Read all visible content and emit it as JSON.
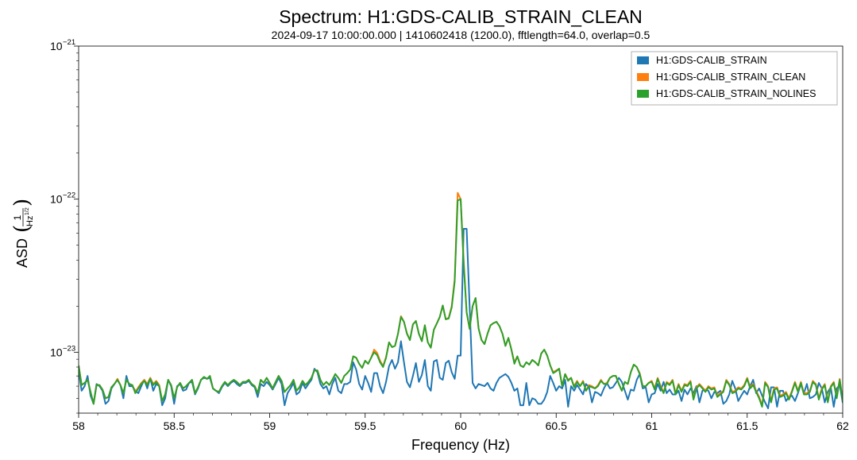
{
  "chart_data": {
    "type": "line",
    "title": "Spectrum: H1:GDS-CALIB_STRAIN_CLEAN",
    "subtitle": "2024-09-17 10:00:00.000 | 1410602418 (1200.0), fftlength=64.0, overlap=0.5",
    "xlabel": "Frequency (Hz)",
    "ylabel": {
      "prefix": "ASD",
      "numerator": "1",
      "denominator": "Hz",
      "exponent": "1/2"
    },
    "xlim": [
      58,
      62
    ],
    "ylim": [
      4e-24,
      1e-21
    ],
    "yscale": "log",
    "x_ticks": [
      58,
      58.5,
      59,
      59.5,
      60,
      60.5,
      61,
      61.5,
      62
    ],
    "x_tick_labels": [
      "58",
      "58.5",
      "59",
      "59.5",
      "60",
      "60.5",
      "61",
      "61.5",
      "62"
    ],
    "y_ticks": [
      {
        "value": 1e-23,
        "base": "10",
        "exp": "−23"
      },
      {
        "value": 1e-22,
        "base": "10",
        "exp": "−22"
      },
      {
        "value": 1e-21,
        "base": "10",
        "exp": "−21"
      }
    ],
    "grid": false,
    "legend_position": "top-right",
    "freq_start": 58,
    "freq_step": 0.015625,
    "series": [
      {
        "name": "H1:GDS-CALIB_STRAIN",
        "color": "#1f77b4",
        "values": [
          7.6,
          5.6,
          6.0,
          7.0,
          5.2,
          4.6,
          6.2,
          6.0,
          5.6,
          4.6,
          4.8,
          5.8,
          6.2,
          6.6,
          6.1,
          5.0,
          7.0,
          6.0,
          6.0,
          5.6,
          5.4,
          6.0,
          6.6,
          5.8,
          6.8,
          5.6,
          6.2,
          6.0,
          4.5,
          5.0,
          6.6,
          6.0,
          4.6,
          6.0,
          6.2,
          5.6,
          5.7,
          6.3,
          6.4,
          5.3,
          5.8,
          6.6,
          6.8,
          6.7,
          6.8,
          5.8,
          5.6,
          5.4,
          5.9,
          6.3,
          6.0,
          6.3,
          6.5,
          6.2,
          6.0,
          6.3,
          6.3,
          6.5,
          6.1,
          5.9,
          5.1,
          6.2,
          6.0,
          6.4,
          6.1,
          5.7,
          6.2,
          6.8,
          6.2,
          4.5,
          5.4,
          5.8,
          6.3,
          5.3,
          5.5,
          6.3,
          5.8,
          6.2,
          6.6,
          7.8,
          7.4,
          6.2,
          5.8,
          6.0,
          5.3,
          6.2,
          6.8,
          5.6,
          5.4,
          6.2,
          6.2,
          6.4,
          8.6,
          7.7,
          6.2,
          5.7,
          7.0,
          6.3,
          5.5,
          7.3,
          7.3,
          6.0,
          5.4,
          6.4,
          8.1,
          8.9,
          7.8,
          8.6,
          11.8,
          8.6,
          6.4,
          5.9,
          7.0,
          8.5,
          6.4,
          7.1,
          8.9,
          6.0,
          5.6,
          8.7,
          8.9,
          6.8,
          6.6,
          8.5,
          8.8,
          7.4,
          6.7,
          9.5,
          9.5,
          64,
          64,
          20,
          6.3,
          5.8,
          6.2,
          6.1,
          6.0,
          6.3,
          5.8,
          5.6,
          6.3,
          6.8,
          7.0,
          7.2,
          6.9,
          6.3,
          5.6,
          5.8,
          4.5,
          4.5,
          6.3,
          4.5,
          5.0,
          4.9,
          4.6,
          4.6,
          4.9,
          5.5,
          7.0,
          6.3,
          5.6,
          6.0,
          5.8,
          6.6,
          4.4,
          6.0,
          5.6,
          6.1,
          5.7,
          5.3,
          6.2,
          5.9,
          4.7,
          5.5,
          5.4,
          5.2,
          5.8,
          6.3,
          5.8,
          5.9,
          6.3,
          6.8,
          6.4,
          5.6,
          4.9,
          5.7,
          5.6,
          6.6,
          7.2,
          5.8,
          5.9,
          4.7,
          5.3,
          5.4,
          6.2,
          5.6,
          6.4,
          5.4,
          5.7,
          5.3,
          5.3,
          5.6,
          4.8,
          5.7,
          5.3,
          5.8,
          5.4,
          6.0,
          4.7,
          5.6,
          5.7,
          5.6,
          5.0,
          5.5,
          5.4,
          5.6,
          4.6,
          4.8,
          5.3,
          6.5,
          5.8,
          4.8,
          5.2,
          5.6,
          5.3,
          6.0,
          6.6,
          5.4,
          5.8,
          5.2,
          4.7,
          4.3,
          5.9,
          5.9,
          4.4,
          5.6,
          5.6,
          4.8,
          5.1,
          5.2,
          4.8,
          5.4,
          6.2,
          5.4,
          6.2,
          5.0,
          5.1,
          5.3,
          6.3,
          5.8,
          4.7,
          5.5,
          5.9,
          4.4,
          5.8,
          6.1,
          4.7,
          6.5,
          4.6,
          5.6,
          5.8,
          5.2,
          4.3,
          5.2,
          5.0,
          6.0,
          5.0,
          5.0,
          4.8,
          5.5,
          5.8,
          5.3,
          5.8,
          5.0,
          5.3,
          5.2,
          4.6,
          5.3,
          5.5,
          4.6,
          7.0
        ]
      },
      {
        "name": "H1:GDS-CALIB_STRAIN_CLEAN",
        "color": "#ff7f0e",
        "values": [
          8.2,
          6.1,
          6.3,
          6.6,
          5.5,
          4.6,
          6.1,
          6.1,
          5.7,
          5.0,
          5.1,
          5.9,
          6.2,
          6.7,
          6.1,
          5.4,
          6.6,
          6.2,
          6.1,
          5.5,
          5.9,
          6.3,
          6.6,
          6.2,
          6.8,
          6.2,
          6.5,
          6.1,
          4.8,
          5.3,
          6.6,
          6.1,
          5.0,
          5.9,
          6.3,
          5.8,
          6.0,
          6.3,
          6.6,
          5.4,
          5.9,
          6.6,
          6.9,
          6.7,
          7.0,
          5.8,
          5.6,
          5.5,
          6.0,
          6.4,
          6.1,
          6.4,
          6.6,
          6.4,
          6.1,
          6.4,
          6.4,
          6.6,
          6.2,
          6.0,
          5.4,
          6.6,
          6.3,
          6.8,
          6.3,
          5.8,
          6.4,
          7.0,
          6.5,
          5.5,
          5.8,
          6.1,
          6.6,
          5.6,
          5.9,
          6.5,
          6.1,
          6.4,
          6.8,
          7.6,
          7.6,
          6.6,
          6.1,
          6.4,
          6.1,
          6.6,
          7.2,
          6.8,
          6.3,
          7.0,
          7.3,
          7.7,
          9.4,
          9.2,
          8.4,
          7.9,
          8.8,
          8.4,
          9.2,
          10.4,
          9.9,
          8.8,
          8.1,
          9.3,
          11.6,
          10.8,
          11.0,
          13.2,
          17.2,
          15.8,
          13.3,
          12.0,
          15.2,
          16.0,
          13.2,
          11.8,
          15.0,
          11.6,
          10.7,
          14.0,
          15.4,
          17.0,
          20.2,
          16.4,
          16.8,
          20.0,
          30.0,
          110,
          100,
          40,
          18.2,
          14.2,
          20.0,
          22.6,
          14.3,
          12.0,
          11.3,
          13.2,
          15.0,
          15.5,
          15.8,
          14.8,
          13.2,
          11.0,
          12.4,
          10.4,
          8.6,
          9.4,
          8.2,
          8.0,
          8.6,
          8.3,
          8.9,
          8.6,
          8.2,
          9.8,
          10.4,
          9.5,
          8.2,
          7.4,
          7.6,
          7.8,
          6.0,
          7.2,
          6.6,
          6.8,
          6.0,
          6.5,
          6.0,
          6.5,
          5.6,
          6.1,
          6.0,
          5.8,
          6.1,
          6.6,
          6.2,
          6.3,
          6.8,
          7.0,
          7.0,
          6.2,
          5.6,
          6.4,
          6.2,
          7.4,
          8.3,
          8.0,
          7.3,
          6.0,
          6.0,
          6.3,
          6.5,
          5.8,
          6.8,
          6.0,
          5.5,
          6.4,
          6.2,
          6.6,
          5.4,
          6.2,
          5.6,
          6.2,
          6.1,
          6.5,
          5.0,
          5.9,
          6.2,
          5.9,
          5.6,
          6.0,
          5.8,
          5.9,
          5.2,
          5.4,
          5.6,
          6.6,
          6.2,
          5.5,
          5.6,
          5.9,
          5.8,
          6.1,
          6.8,
          5.9,
          6.2,
          5.6,
          5.1,
          4.5,
          6.4,
          6.0,
          4.8,
          5.8,
          5.9,
          5.2,
          5.3,
          5.5,
          5.0,
          5.6,
          6.4,
          5.6,
          6.4,
          5.4,
          5.4,
          5.6,
          6.5,
          6.2,
          5.0,
          5.8,
          6.2,
          4.8,
          6.0,
          6.4,
          5.1,
          6.7,
          4.9,
          5.7,
          6.1,
          5.5,
          4.6,
          5.5,
          5.4,
          6.1,
          5.4,
          5.3,
          5.0,
          5.8,
          6.2,
          5.6,
          6.1,
          5.4,
          5.6,
          5.5,
          4.8,
          5.6,
          5.8,
          4.9,
          7.0
        ]
      },
      {
        "name": "H1:GDS-CALIB_STRAIN_NOLINES",
        "color": "#2ca02c",
        "values": [
          8.2,
          6.1,
          6.3,
          6.6,
          5.5,
          4.6,
          6.1,
          6.1,
          5.7,
          5.0,
          5.1,
          5.9,
          6.2,
          6.6,
          6.1,
          5.4,
          6.6,
          6.2,
          6.1,
          5.4,
          5.8,
          6.2,
          6.5,
          6.1,
          6.7,
          6.1,
          6.4,
          6.0,
          4.8,
          5.3,
          6.6,
          6.1,
          5.0,
          5.9,
          6.3,
          5.8,
          6.0,
          6.3,
          6.6,
          5.4,
          5.9,
          6.6,
          6.9,
          6.7,
          7.0,
          5.8,
          5.6,
          5.5,
          6.0,
          6.4,
          6.1,
          6.4,
          6.6,
          6.4,
          6.1,
          6.4,
          6.4,
          6.6,
          6.2,
          6.0,
          5.4,
          6.6,
          6.3,
          6.8,
          6.3,
          5.8,
          6.4,
          7.0,
          6.5,
          5.5,
          5.8,
          6.1,
          6.6,
          5.6,
          5.9,
          6.5,
          6.1,
          6.4,
          6.8,
          7.6,
          7.6,
          6.6,
          6.1,
          6.4,
          6.1,
          6.6,
          7.2,
          6.8,
          6.3,
          7.0,
          7.3,
          7.7,
          9.4,
          9.2,
          8.4,
          7.9,
          8.8,
          8.4,
          9.2,
          10.0,
          9.6,
          8.6,
          8.0,
          9.2,
          11.6,
          10.8,
          11.0,
          13.2,
          17.0,
          15.8,
          13.2,
          12.0,
          15.2,
          16.0,
          13.2,
          11.8,
          15.0,
          11.6,
          10.7,
          14.0,
          15.4,
          17.0,
          20.2,
          16.4,
          16.6,
          19.6,
          29.0,
          98,
          100,
          38,
          18.2,
          14.2,
          20.0,
          22.6,
          14.3,
          12.0,
          11.3,
          13.2,
          15.0,
          15.5,
          15.8,
          14.8,
          13.2,
          11.0,
          12.4,
          10.4,
          8.4,
          9.4,
          8.2,
          8.0,
          8.6,
          8.3,
          8.9,
          8.6,
          8.2,
          9.8,
          10.4,
          9.5,
          8.2,
          7.3,
          7.5,
          7.8,
          6.0,
          7.2,
          6.5,
          6.8,
          5.9,
          6.4,
          6.0,
          6.4,
          5.6,
          6.0,
          5.9,
          5.8,
          6.0,
          6.5,
          6.2,
          6.2,
          6.8,
          7.0,
          7.0,
          6.2,
          5.6,
          6.4,
          6.2,
          7.4,
          8.3,
          8.0,
          7.2,
          6.0,
          6.0,
          6.3,
          6.4,
          5.7,
          6.7,
          5.9,
          5.4,
          6.3,
          6.1,
          6.5,
          5.3,
          6.1,
          5.5,
          6.1,
          6.0,
          6.4,
          4.9,
          5.8,
          6.1,
          5.8,
          5.5,
          5.9,
          5.7,
          5.8,
          5.1,
          5.3,
          5.5,
          6.5,
          6.1,
          5.4,
          5.5,
          5.8,
          5.7,
          6.0,
          6.7,
          5.8,
          6.1,
          5.5,
          5.0,
          4.4,
          6.3,
          5.9,
          4.7,
          5.7,
          5.8,
          5.1,
          5.2,
          5.4,
          4.9,
          5.5,
          6.3,
          5.5,
          6.3,
          5.3,
          5.3,
          5.5,
          6.4,
          6.1,
          4.9,
          5.7,
          6.1,
          4.7,
          5.9,
          6.3,
          5.0,
          6.6,
          4.8,
          5.6,
          6.0,
          5.4,
          4.5,
          5.4,
          5.3,
          6.0,
          5.3,
          5.2,
          4.9,
          5.7,
          6.1,
          5.5,
          6.0,
          5.3,
          5.5,
          5.4,
          4.7,
          5.5,
          5.7,
          4.8,
          7.0
        ]
      }
    ]
  }
}
